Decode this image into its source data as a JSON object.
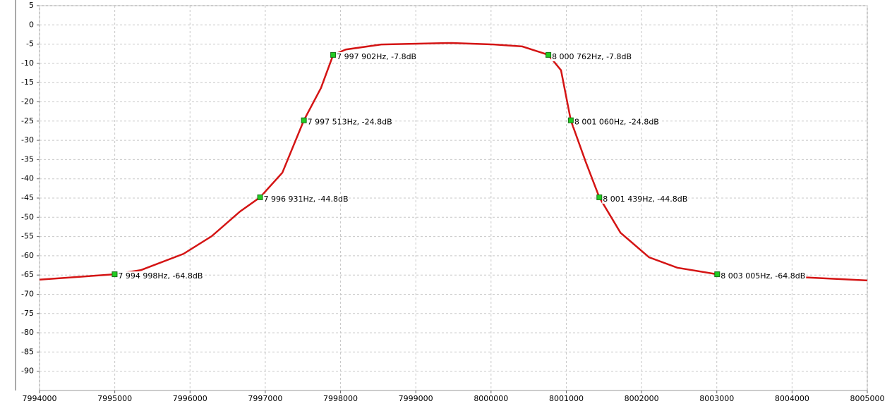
{
  "chart_data": {
    "type": "line",
    "xlim": [
      7994000,
      8005000
    ],
    "xticks": [
      7994000,
      7995000,
      7996000,
      7997000,
      7998000,
      7999000,
      8000000,
      8001000,
      8002000,
      8003000,
      8004000,
      8005000
    ],
    "ylim": [
      -95,
      5
    ],
    "yticks": [
      5,
      0,
      -5,
      -10,
      -15,
      -20,
      -25,
      -30,
      -35,
      -40,
      -45,
      -50,
      -55,
      -60,
      -65,
      -70,
      -75,
      -80,
      -85,
      -90
    ],
    "grid": true,
    "series": [
      {
        "color": "#d41414",
        "x": [
          7994000,
          7995000,
          7995350,
          7995913,
          7996289,
          7996664,
          7996931,
          7997227,
          7997513,
          7997740,
          7997902,
          7998070,
          7998540,
          7999477,
          8000040,
          8000415,
          8000762,
          8000930,
          8001060,
          8001260,
          8001439,
          8001720,
          8002100,
          8002475,
          8003005,
          8004057,
          8005000
        ],
        "values": [
          -66.2,
          -64.8,
          -63.7,
          -59.5,
          -54.9,
          -48.5,
          -44.8,
          -38.4,
          -24.8,
          -16.4,
          -7.8,
          -6.4,
          -5.1,
          -4.7,
          -5.1,
          -5.6,
          -7.8,
          -11.8,
          -24.8,
          -35.7,
          -44.8,
          -54.0,
          -60.4,
          -63.1,
          -64.8,
          -65.5,
          -66.4
        ]
      }
    ],
    "markers": {
      "color": "#22cc22",
      "x": [
        7994998,
        7996931,
        7997513,
        7997902,
        8000762,
        8001060,
        8001439,
        8003005
      ],
      "values": [
        -64.8,
        -44.8,
        -24.8,
        -7.8,
        -7.8,
        -24.8,
        -44.8,
        -64.8
      ],
      "value_labels": [
        "7 994 998Hz, -64.8dB",
        "7 996 931Hz, -44.8dB",
        "7 997 513Hz, -24.8dB",
        "7 997 902Hz, -7.8dB",
        "8 000 762Hz, -7.8dB",
        "8 001 060Hz, -24.8dB",
        "8 001 439Hz, -44.8dB",
        "8 003 005Hz, -64.8dB"
      ]
    }
  }
}
